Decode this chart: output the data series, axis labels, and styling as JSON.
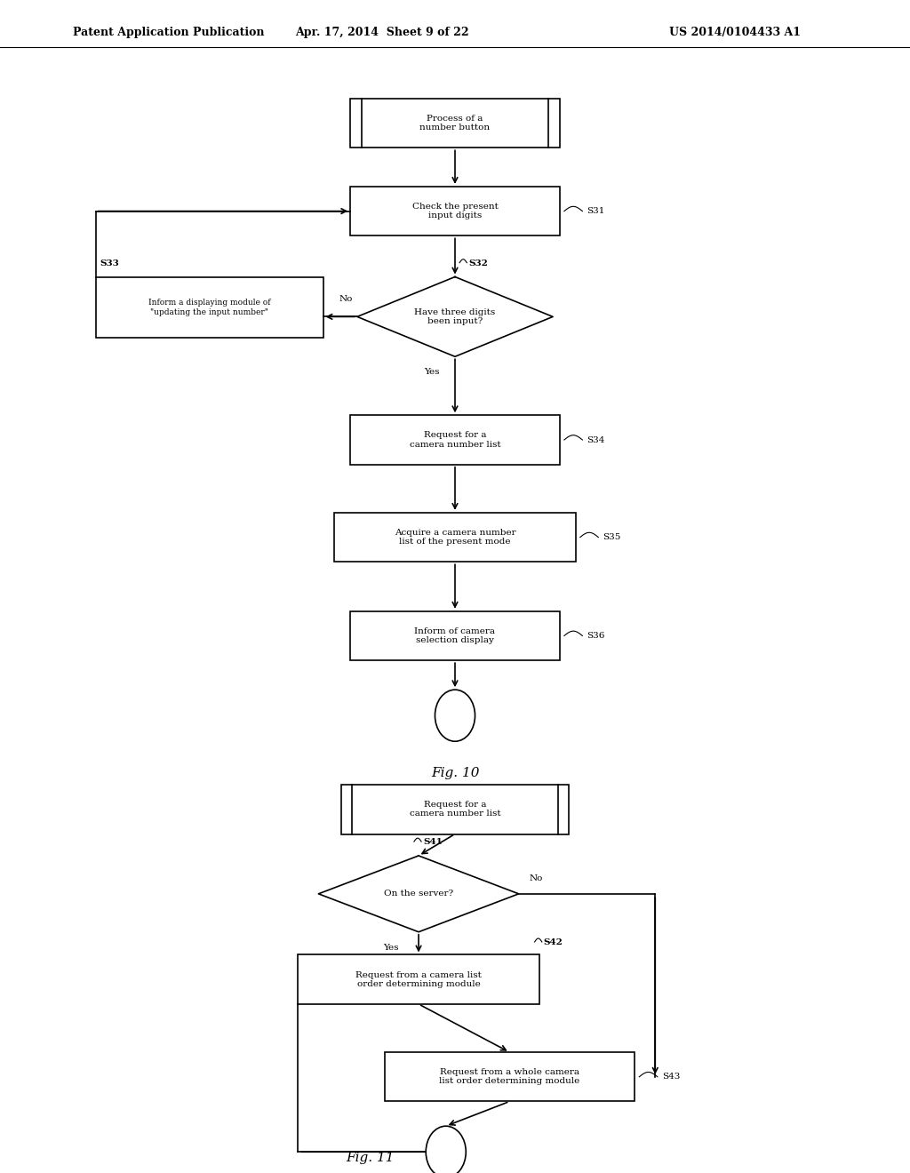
{
  "bg_color": "#ffffff",
  "header_left": "Patent Application Publication",
  "header_center": "Apr. 17, 2014  Sheet 9 of 22",
  "header_right": "US 2014/0104433 A1",
  "lw": 1.2,
  "fs": 7.5,
  "fig10_title": "Fig. 10",
  "fig11_title": "Fig. 11"
}
